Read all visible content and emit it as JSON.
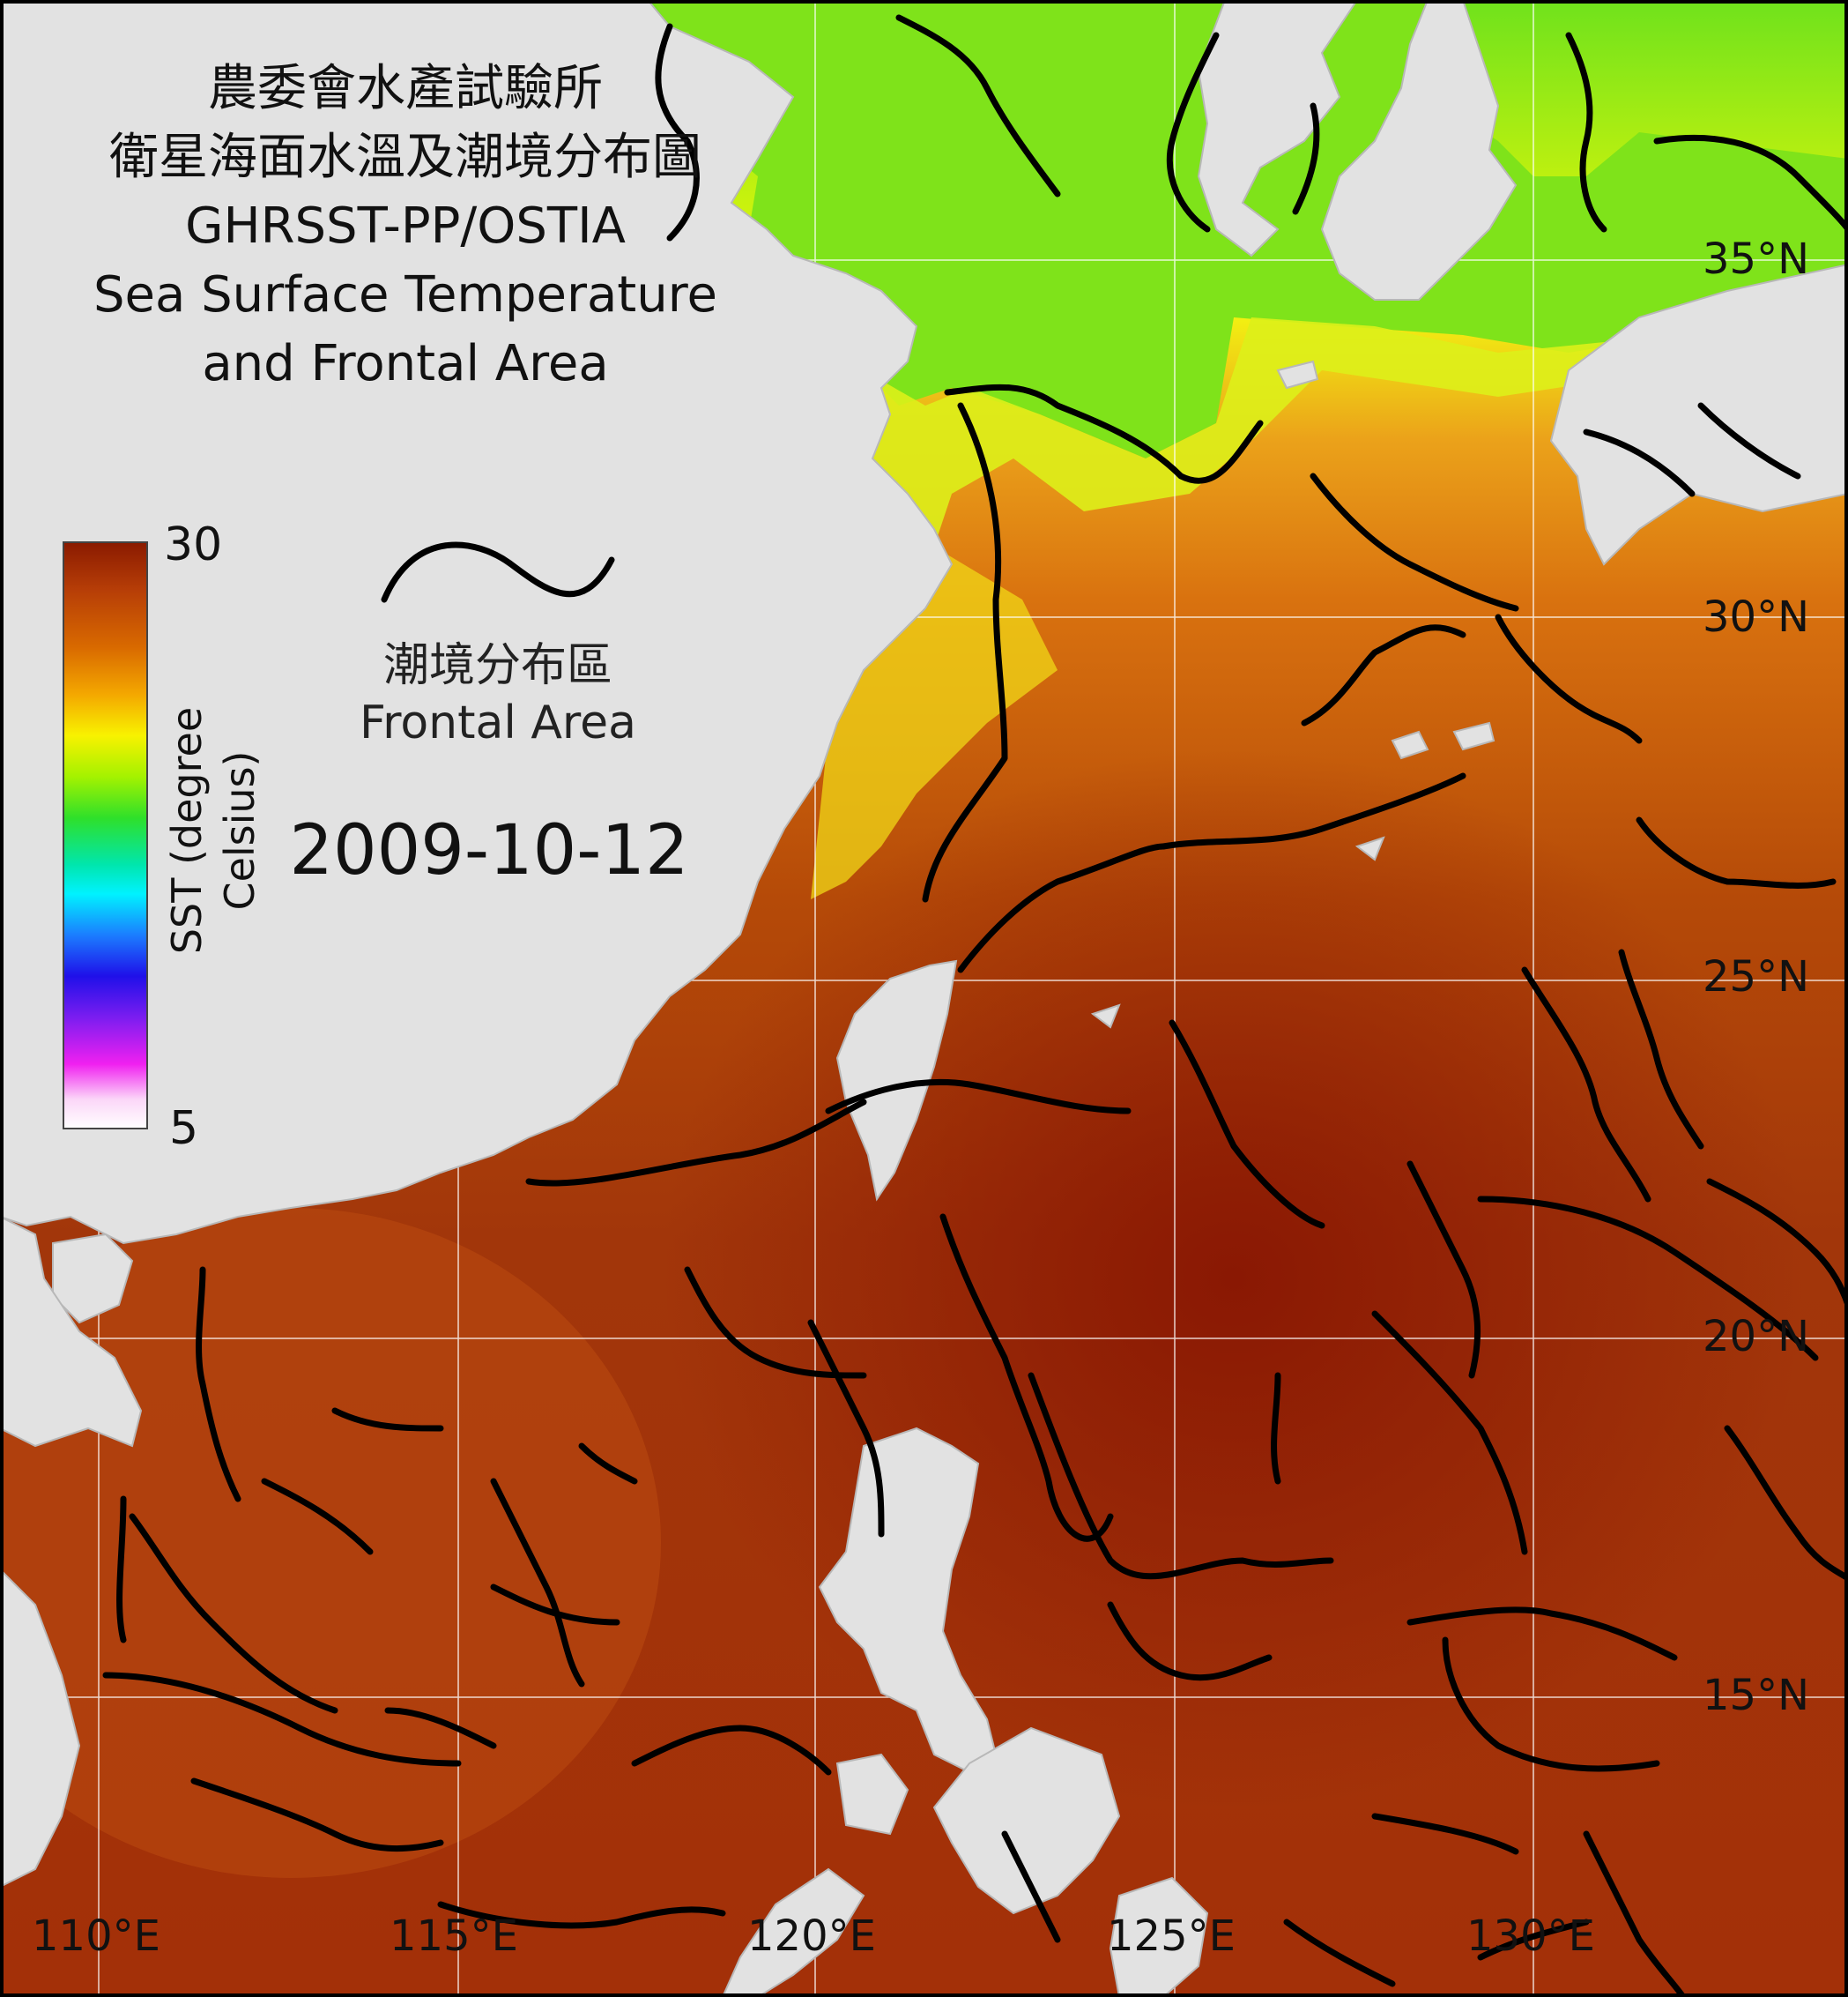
{
  "title": {
    "line1": "農委會水產試驗所",
    "line2": "衛星海面水溫及潮境分布圖",
    "line3": "GHRSST-PP/OSTIA",
    "line4": "Sea Surface Temperature",
    "line5": "and Frontal Area"
  },
  "legend": {
    "max_label": "30",
    "min_label": "5",
    "axis_title": "SST (degree Celsius)",
    "gradient_colors": [
      "#8a1a00",
      "#b63d07",
      "#d96a00",
      "#f4a800",
      "#f8f200",
      "#a4f200",
      "#2fe02a",
      "#00e6ad",
      "#00f2ff",
      "#1b7dff",
      "#1f10e9",
      "#7a1df0",
      "#f020f0",
      "#fbd6f8",
      "#ffffff"
    ],
    "frontal_label_zh": "潮境分布區",
    "frontal_label_en": "Frontal Area"
  },
  "date": "2009-10-12",
  "latitude_labels": [
    "35°N",
    "30°N",
    "25°N",
    "20°N",
    "15°N"
  ],
  "longitude_labels": [
    "110°E",
    "115°E",
    "120°E",
    "125°E",
    "130°E"
  ],
  "colors": {
    "land": "#e2e2e2",
    "warm_sea": "#a83008",
    "hot_sea": "#8c1b03",
    "orange_sea": "#dd7416",
    "yellow_sea": "#f1f316",
    "green_sea": "#8be91a",
    "front_line": "#000000",
    "grid": "#ffffff",
    "border": "#000000"
  }
}
